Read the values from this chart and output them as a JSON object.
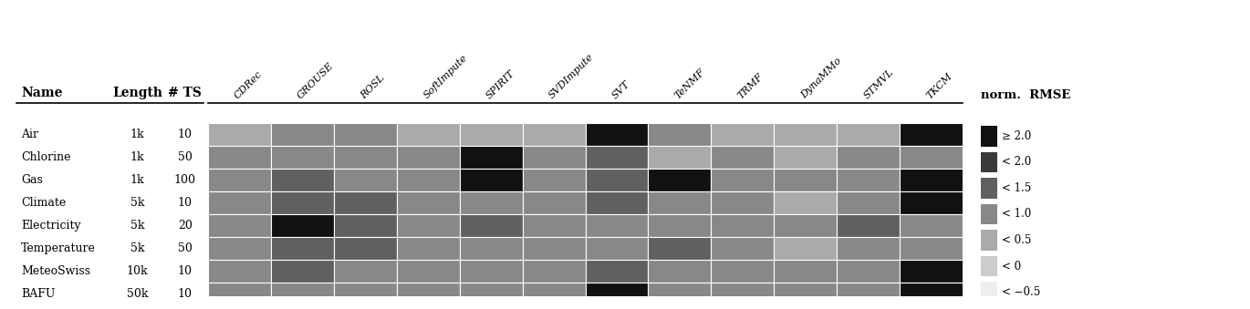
{
  "rows": [
    "Air",
    "Chlorine",
    "Gas",
    "Climate",
    "Electricity",
    "Temperature",
    "MeteoSwiss",
    "BAFU"
  ],
  "row_lengths": [
    "1k",
    "1k",
    "1k",
    "5k",
    "5k",
    "5k",
    "10k",
    "50k"
  ],
  "row_ts": [
    "10",
    "50",
    "100",
    "10",
    "20",
    "50",
    "10",
    "10"
  ],
  "cols": [
    "CDRec",
    "GROUSE",
    "ROSL",
    "SoftImpute",
    "SPIRIT",
    "SVDImpute",
    "SVT",
    "TeNMF",
    "TRMF",
    "DynaMMo",
    "STMVL",
    "TKCM"
  ],
  "heatmap": [
    [
      0.4,
      0.5,
      0.5,
      0.4,
      0.4,
      0.4,
      2.5,
      0.5,
      0.4,
      0.4,
      0.4,
      2.5
    ],
    [
      0.5,
      0.8,
      0.5,
      0.5,
      2.5,
      0.5,
      1.3,
      0.3,
      0.5,
      0.4,
      0.5,
      0.5
    ],
    [
      0.5,
      1.0,
      0.7,
      0.5,
      2.2,
      0.5,
      1.1,
      2.5,
      0.5,
      0.5,
      0.7,
      2.5
    ],
    [
      0.5,
      1.3,
      1.3,
      0.5,
      0.5,
      0.5,
      1.0,
      0.5,
      0.5,
      0.3,
      0.5,
      2.5
    ],
    [
      0.5,
      2.2,
      1.3,
      0.5,
      1.2,
      0.5,
      0.5,
      0.5,
      0.5,
      0.5,
      1.2,
      0.8
    ],
    [
      0.5,
      1.2,
      1.0,
      0.5,
      0.5,
      0.5,
      0.9,
      1.2,
      0.5,
      0.3,
      0.5,
      0.5
    ],
    [
      0.5,
      1.3,
      0.8,
      0.5,
      0.5,
      0.8,
      1.1,
      0.5,
      0.5,
      0.5,
      0.5,
      2.5
    ],
    [
      0.5,
      0.5,
      0.5,
      0.5,
      0.5,
      0.8,
      2.5,
      0.5,
      0.5,
      0.5,
      0.5,
      2.5
    ]
  ],
  "legend_levels": [
    "≥ 2.0",
    "< 2.0",
    "< 1.5",
    "< 1.0",
    "< 0.5",
    "< 0",
    "< −0.5"
  ],
  "level_colors": [
    "#111111",
    "#3a3a3a",
    "#606060",
    "#888888",
    "#aaaaaa",
    "#cccccc",
    "#eeeeee"
  ],
  "legend_title": "norm.  RMSE",
  "col_label_fontsize": 8,
  "row_fontsize": 9,
  "header_fontsize": 10
}
